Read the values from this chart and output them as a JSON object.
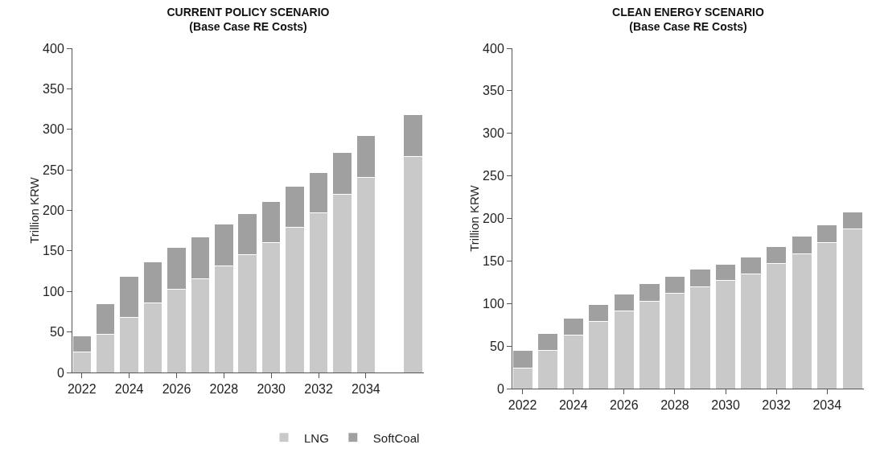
{
  "chart_data": [
    {
      "type": "bar",
      "title": "CURRENT POLICY SCENARIO",
      "subtitle": "(Base Case RE Costs)",
      "ylabel": "Trillion KRW",
      "stacked": true,
      "legend": "bottom",
      "grid": false,
      "x": [
        2022,
        2023,
        2024,
        2025,
        2026,
        2027,
        2028,
        2029,
        2030,
        2031,
        2032,
        2033,
        2034,
        2036
      ],
      "xlim": [
        2021.6,
        2036.45
      ],
      "xticks": [
        2022,
        2024,
        2026,
        2028,
        2030,
        2032,
        2034
      ],
      "ylim": [
        0,
        400
      ],
      "yticks": [
        0,
        50,
        100,
        150,
        200,
        250,
        300,
        350,
        400
      ],
      "series": [
        {
          "name": "LNG",
          "color": "#c8c9c8",
          "values": [
            25,
            47,
            68,
            86,
            103,
            116,
            132,
            145,
            160,
            179,
            197,
            220,
            241,
            267
          ]
        },
        {
          "name": "SoftCoal",
          "color": "#a0a0a0",
          "values": [
            20,
            38,
            51,
            50,
            51,
            51,
            51,
            51,
            51,
            51,
            50,
            51,
            51,
            51
          ]
        }
      ]
    },
    {
      "type": "bar",
      "title": "CLEAN ENERGY SCENARIO",
      "subtitle": "(Base Case RE Costs)",
      "ylabel": "Trillion KRW",
      "stacked": true,
      "grid": false,
      "x": [
        2022,
        2023,
        2024,
        2025,
        2026,
        2027,
        2028,
        2029,
        2030,
        2031,
        2032,
        2033,
        2034,
        2035
      ],
      "xlim": [
        2021.6,
        2035.45
      ],
      "xticks": [
        2022,
        2024,
        2026,
        2028,
        2030,
        2032,
        2034
      ],
      "ylim": [
        0,
        400
      ],
      "yticks": [
        0,
        50,
        100,
        150,
        200,
        250,
        300,
        350,
        400
      ],
      "series": [
        {
          "color": "#c8c9c8",
          "values": [
            24,
            45,
            63,
            79,
            91,
            103,
            112,
            120,
            127,
            135,
            147,
            158,
            172,
            188
          ]
        },
        {
          "color": "#a0a0a0",
          "values": [
            21,
            20,
            20,
            20,
            20,
            20,
            20,
            20,
            19,
            20,
            20,
            21,
            20,
            20
          ]
        }
      ]
    }
  ]
}
